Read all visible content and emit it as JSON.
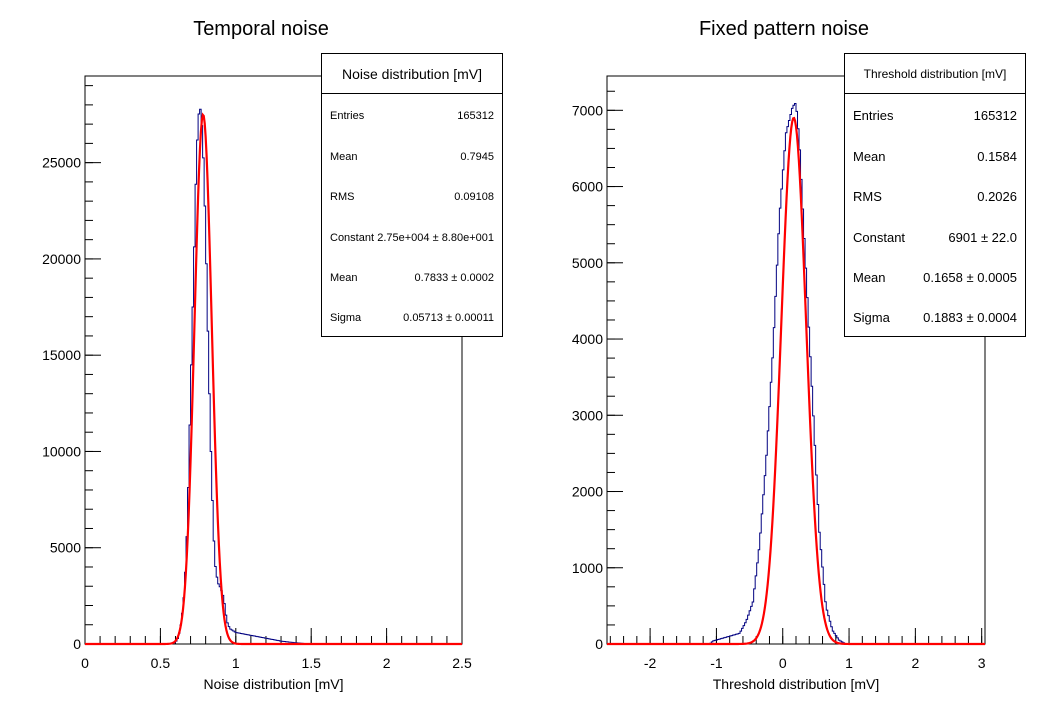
{
  "chart_data": [
    {
      "type": "histogram",
      "title": "Temporal noise",
      "xlabel": "Noise distribution [mV]",
      "ylabel": "",
      "xlim": [
        0,
        2.5
      ],
      "ylim": [
        0,
        29500
      ],
      "xticks": [
        "0",
        "0.5",
        "1",
        "1.5",
        "2",
        "2.5"
      ],
      "yticks": [
        "0",
        "5000",
        "10000",
        "15000",
        "20000",
        "25000"
      ],
      "histogram_color": "#000080",
      "fit_color": "#ff0000",
      "histogram": {
        "x": [
          0.6,
          0.62,
          0.64,
          0.66,
          0.68,
          0.7,
          0.72,
          0.74,
          0.76,
          0.78,
          0.8,
          0.82,
          0.84,
          0.86,
          0.88,
          0.9,
          0.92,
          0.94,
          0.96,
          1.0,
          1.1,
          1.2,
          1.3,
          1.4
        ],
        "y": [
          80,
          350,
          1200,
          2800,
          6500,
          13000,
          19000,
          25500,
          28200,
          26500,
          21500,
          14500,
          8500,
          4300,
          3200,
          2900,
          2400,
          1200,
          800,
          600,
          450,
          300,
          150,
          60
        ]
      },
      "fit": {
        "function": "gaus",
        "constant": 27500,
        "mean": 0.7833,
        "sigma": 0.05713
      },
      "stats": {
        "title": "Noise distribution [mV]",
        "rows": [
          {
            "label": "Entries",
            "value": "165312"
          },
          {
            "label": "Mean",
            "value": "0.7945"
          },
          {
            "label": "RMS",
            "value": "0.09108"
          },
          {
            "label": "Constant",
            "value": "2.75e+004 ± 8.80e+001"
          },
          {
            "label": "Mean",
            "value": "0.7833 ± 0.0002"
          },
          {
            "label": "Sigma",
            "value": "0.05713 ± 0.00011"
          }
        ]
      }
    },
    {
      "type": "histogram",
      "title": "Fixed pattern noise",
      "xlabel": "Threshold distribution [mV]",
      "ylabel": "",
      "xlim": [
        -2.65,
        3.05
      ],
      "ylim": [
        0,
        7450
      ],
      "xticks": [
        "-2",
        "-1",
        "0",
        "1",
        "2",
        "3"
      ],
      "yticks": [
        "0",
        "1000",
        "2000",
        "3000",
        "4000",
        "5000",
        "6000",
        "7000"
      ],
      "histogram_color": "#000080",
      "fit_color": "#ff0000",
      "histogram": {
        "x": [
          -1.05,
          -0.65,
          -0.55,
          -0.45,
          -0.35,
          -0.25,
          -0.15,
          -0.05,
          0.05,
          0.15,
          0.2,
          0.25,
          0.35,
          0.45,
          0.55,
          0.65,
          0.75,
          0.85
        ],
        "y": [
          40,
          140,
          300,
          550,
          1300,
          2400,
          3800,
          5600,
          6700,
          7050,
          7100,
          6600,
          4900,
          3200,
          1500,
          500,
          180,
          50
        ]
      },
      "fit": {
        "function": "gaus",
        "constant": 6901,
        "mean": 0.1658,
        "sigma": 0.1883
      },
      "stats": {
        "title": "Threshold distribution [mV]",
        "rows": [
          {
            "label": "Entries",
            "value": "165312"
          },
          {
            "label": "Mean",
            "value": "0.1584"
          },
          {
            "label": "RMS",
            "value": "0.2026"
          },
          {
            "label": "Constant",
            "value": "6901 ± 22.0"
          },
          {
            "label": "Mean",
            "value": "0.1658 ± 0.0005"
          },
          {
            "label": "Sigma",
            "value": "0.1883 ± 0.0004"
          }
        ]
      }
    }
  ]
}
